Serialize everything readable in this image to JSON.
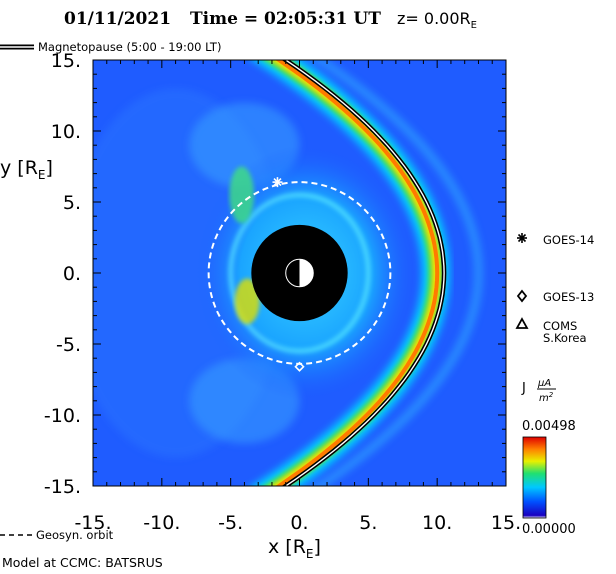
{
  "title": {
    "date": "01/11/2021",
    "time_label": "Time = 02:05:31 UT",
    "z_label": "z= 0.00R",
    "z_sub": "E"
  },
  "legend_top": {
    "magnetopause": "Magnetopause (5:00 - 19:00 LT)"
  },
  "chart_data": {
    "type": "heatmap",
    "xlabel": "x [R",
    "xlabel_sub": "E",
    "xlabel_close": "]",
    "ylabel": "y [R",
    "ylabel_sub": "E",
    "ylabel_close": "]",
    "xlim": [
      -15,
      15
    ],
    "ylim": [
      -15,
      15
    ],
    "x_ticks": [
      -15,
      -10,
      -5,
      0,
      5,
      10,
      15
    ],
    "x_tick_labels": [
      "-15.",
      "-10.",
      "-5.",
      "0.",
      "5.",
      "10.",
      "15."
    ],
    "y_ticks": [
      15,
      10,
      5,
      0,
      -5,
      -10,
      -15
    ],
    "y_tick_labels": [
      "15.",
      "10.",
      "5.",
      "0.",
      "-5.",
      "-10.",
      "-15."
    ],
    "colorbar": {
      "label": "J",
      "unit_num": "μA",
      "unit_den": "m",
      "unit_exp": "2",
      "max_label": "0.00498",
      "min_label": "0.00000",
      "max": 0.00498,
      "min": 0.0
    },
    "earth_radius": 1,
    "plasma_sphere_radius": 3.5,
    "geosync_orbit_radius": 6.6,
    "magnetopause": {
      "standoff_x": 10.5,
      "flank_x_at_y15": -1
    },
    "satellites": [
      {
        "name": "GOES-14",
        "x": -1.6,
        "y": 6.4,
        "marker": "asterisk"
      },
      {
        "name": "GOES-13",
        "x": 0.0,
        "y": -6.6,
        "marker": "diamond"
      },
      {
        "name": "COMS",
        "name2": "S.Korea",
        "marker": "triangle"
      }
    ]
  },
  "legend_bottom": {
    "geosyn": "Geosyn. orbit",
    "model": "Model at CCMC: BATSRUS"
  },
  "colors": {
    "background": "#ffffff",
    "field_base": "#1f5cff",
    "field_mid": "#19c8ff",
    "hot": "#ff2a00",
    "black": "#000000"
  }
}
